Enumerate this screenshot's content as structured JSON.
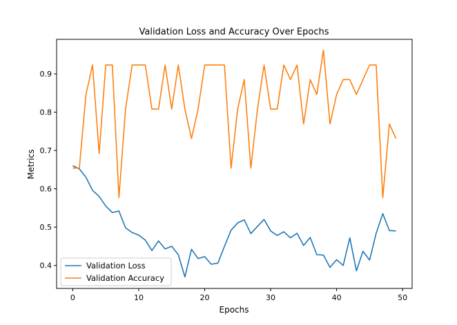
{
  "chart_data": {
    "type": "line",
    "title": "Validation Loss and Accuracy Over Epochs",
    "xlabel": "Epochs",
    "ylabel": "Metrics",
    "xlim": [
      -2.45,
      51.45
    ],
    "ylim": [
      0.34,
      0.99
    ],
    "xticks": [
      0,
      10,
      20,
      30,
      40,
      50
    ],
    "yticks": [
      0.4,
      0.5,
      0.6,
      0.7,
      0.8,
      0.9
    ],
    "grid": false,
    "legend_position": "lower-left",
    "x": [
      0,
      1,
      2,
      3,
      4,
      5,
      6,
      7,
      8,
      9,
      10,
      11,
      12,
      13,
      14,
      15,
      16,
      17,
      18,
      19,
      20,
      21,
      22,
      23,
      24,
      25,
      26,
      27,
      28,
      29,
      30,
      31,
      32,
      33,
      34,
      35,
      36,
      37,
      38,
      39,
      40,
      41,
      42,
      43,
      44,
      45,
      46,
      47,
      48,
      49
    ],
    "series": [
      {
        "name": "Validation Loss",
        "color": "#1f77b4",
        "values": [
          0.66,
          0.652,
          0.63,
          0.596,
          0.58,
          0.555,
          0.538,
          0.542,
          0.498,
          0.486,
          0.479,
          0.466,
          0.439,
          0.464,
          0.443,
          0.45,
          0.428,
          0.37,
          0.442,
          0.418,
          0.423,
          0.403,
          0.406,
          0.45,
          0.492,
          0.511,
          0.519,
          0.483,
          0.502,
          0.52,
          0.49,
          0.478,
          0.488,
          0.472,
          0.484,
          0.452,
          0.473,
          0.428,
          0.427,
          0.395,
          0.415,
          0.4,
          0.472,
          0.386,
          0.437,
          0.414,
          0.484,
          0.535,
          0.491,
          0.49
        ]
      },
      {
        "name": "Validation Accuracy",
        "color": "#ff7f0e",
        "values": [
          0.654,
          0.654,
          0.846,
          0.923,
          0.692,
          0.923,
          0.923,
          0.577,
          0.808,
          0.923,
          0.923,
          0.923,
          0.808,
          0.808,
          0.923,
          0.808,
          0.923,
          0.808,
          0.731,
          0.808,
          0.923,
          0.923,
          0.923,
          0.923,
          0.654,
          0.808,
          0.885,
          0.654,
          0.808,
          0.923,
          0.808,
          0.808,
          0.923,
          0.885,
          0.923,
          0.769,
          0.885,
          0.846,
          0.962,
          0.769,
          0.846,
          0.885,
          0.885,
          0.846,
          0.885,
          0.923,
          0.923,
          0.577,
          0.769,
          0.731
        ]
      }
    ]
  }
}
